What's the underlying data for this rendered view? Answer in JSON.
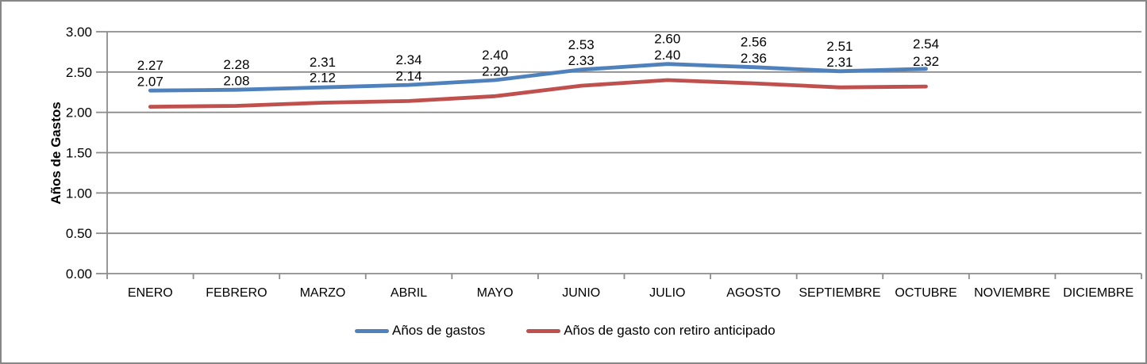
{
  "chart_data": {
    "type": "line",
    "title": "",
    "ylabel": "Años de Gastos",
    "xlabel": "",
    "ylim": [
      0,
      3
    ],
    "ytick_step": 0.5,
    "ytick_labels": [
      "0.00",
      "0.50",
      "1.00",
      "1.50",
      "2.00",
      "2.50",
      "3.00"
    ],
    "grid": true,
    "legend_position": "bottom",
    "categories": [
      "ENERO",
      "FEBRERO",
      "MARZO",
      "ABRIL",
      "MAYO",
      "JUNIO",
      "JULIO",
      "AGOSTO",
      "SEPTIEMBRE",
      "OCTUBRE",
      "NOVIEMBRE",
      "DICIEMBRE"
    ],
    "series": [
      {
        "name": "Años de gastos",
        "color": "#4F81BD",
        "values": [
          2.27,
          2.28,
          2.31,
          2.34,
          2.4,
          2.53,
          2.6,
          2.56,
          2.51,
          2.54,
          null,
          null
        ]
      },
      {
        "name": "Años de gasto con retiro anticipado",
        "color": "#C0504D",
        "values": [
          2.07,
          2.08,
          2.12,
          2.14,
          2.2,
          2.33,
          2.4,
          2.36,
          2.31,
          2.32,
          null,
          null
        ]
      }
    ],
    "data_labels_decimals": 2,
    "colors": {
      "grid": "#8C8C8C",
      "axis": "#8C8C8C",
      "frame_border": "#878787",
      "text": "#000000",
      "background": "#FFFFFF"
    }
  }
}
